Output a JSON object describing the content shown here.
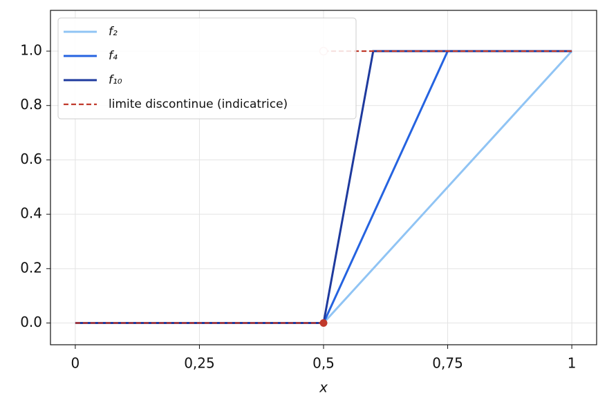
{
  "chart_data": {
    "type": "line",
    "xlabel": "x",
    "xlim": [
      -0.05,
      1.05
    ],
    "ylim": [
      -0.08,
      1.15
    ],
    "xticks": [
      0,
      {
        "value": 0.25,
        "label": "0,25"
      },
      {
        "value": 0.5,
        "label": "0,5"
      },
      {
        "value": 0.75,
        "label": "0,75"
      },
      1
    ],
    "yticks": [
      {
        "value": 0,
        "label": "0.0"
      },
      {
        "value": 0.2,
        "label": "0.2"
      },
      {
        "value": 0.4,
        "label": "0.4"
      },
      {
        "value": 0.6,
        "label": "0.6"
      },
      {
        "value": 0.8,
        "label": "0.8"
      },
      {
        "value": 1,
        "label": "1.0"
      }
    ],
    "grid": true,
    "legend": "upper left",
    "series": [
      {
        "name": "f₂",
        "color": "#90c4f4",
        "x": [
          0,
          0.5,
          1
        ],
        "values": [
          0,
          0,
          1
        ]
      },
      {
        "name": "f₄",
        "color": "#2563e0",
        "x": [
          0,
          0.5,
          0.75,
          1
        ],
        "values": [
          0,
          0,
          1,
          1
        ]
      },
      {
        "name": "f₁₀",
        "color": "#1e3a9e",
        "x": [
          0,
          0.5,
          0.6,
          1
        ],
        "values": [
          0,
          0,
          1,
          1
        ]
      },
      {
        "name": "limite discontinue (indicatrice)",
        "color": "#c0392b",
        "dashed": true,
        "x": [
          0,
          0.5,
          null,
          0.5,
          1
        ],
        "values": [
          0,
          0,
          null,
          1,
          1
        ],
        "closed_point": [
          0.5,
          0
        ],
        "open_point": [
          0.5,
          1
        ]
      }
    ]
  }
}
